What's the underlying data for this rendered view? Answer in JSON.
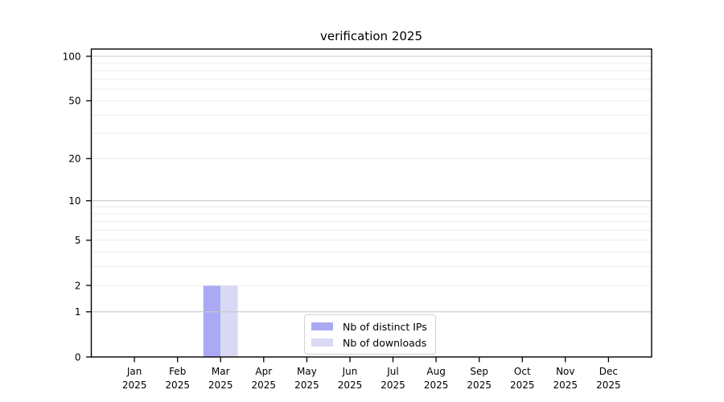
{
  "chart_data": {
    "type": "bar",
    "title": "verification 2025",
    "categories": [
      "Jan",
      "Feb",
      "Mar",
      "Apr",
      "May",
      "Jun",
      "Jul",
      "Aug",
      "Sep",
      "Oct",
      "Nov",
      "Dec"
    ],
    "x_tick_year": "2025",
    "series": [
      {
        "name": "Nb of distinct IPs",
        "color": "#a9a9f4",
        "values": [
          0,
          0,
          2,
          0,
          0,
          0,
          0,
          0,
          0,
          0,
          0,
          0
        ]
      },
      {
        "name": "Nb of downloads",
        "color": "#d9d9f6",
        "values": [
          0,
          0,
          2,
          0,
          0,
          0,
          0,
          0,
          0,
          0,
          0,
          0
        ]
      }
    ],
    "yscale": "log1p",
    "ylim": [
      0,
      100
    ],
    "yticks": [
      0,
      1,
      2,
      5,
      10,
      20,
      50,
      100
    ],
    "grid": true,
    "legend_position": "lower center",
    "colors": {
      "decade_gridline": "#c9c9c9",
      "minor_gridline": "#ececec",
      "axis": "#000000",
      "text": "#000000",
      "legend_border": "#d2d2d2",
      "background": "#ffffff"
    }
  }
}
